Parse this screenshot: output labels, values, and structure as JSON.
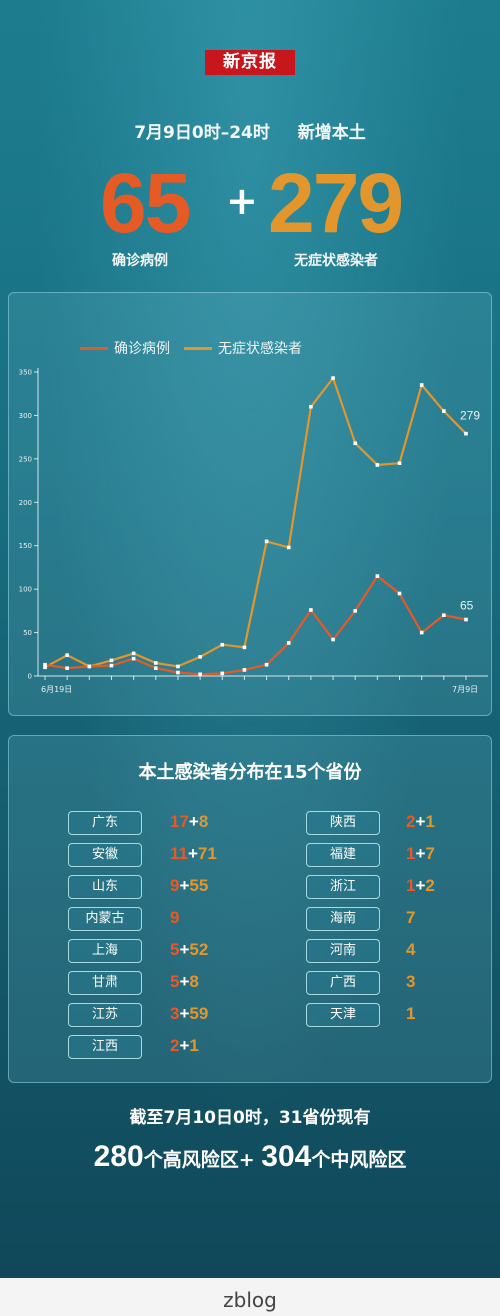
{
  "brand": "新京报",
  "headline": {
    "date_range": "7月9日0时–24时",
    "label": "新增本土"
  },
  "totals": {
    "confirmed": "65",
    "plus": "+",
    "asymptomatic": "279",
    "confirmed_label": "确诊病例",
    "asymptomatic_label": "无症状感染者"
  },
  "colors": {
    "confirmed": "#e65a26",
    "asymptomatic": "#e2962c"
  },
  "chart_data": {
    "type": "line",
    "x_start_label": "6月19日",
    "x_end_label": "7月9日",
    "ylim": [
      0,
      350
    ],
    "yticks": [
      0,
      50,
      100,
      150,
      200,
      250,
      300,
      350
    ],
    "grid": false,
    "legend_position": "top-left",
    "series": [
      {
        "name": "确诊病例",
        "color": "#e65a26",
        "end_label": "65",
        "values": [
          13,
          9,
          11,
          12,
          20,
          9,
          4,
          2,
          3,
          7,
          13,
          38,
          76,
          42,
          75,
          115,
          95,
          50,
          70,
          65
        ]
      },
      {
        "name": "无症状感染者",
        "color": "#e2962c",
        "end_label": "279",
        "values": [
          10,
          24,
          11,
          18,
          26,
          15,
          11,
          22,
          36,
          33,
          155,
          148,
          310,
          343,
          268,
          243,
          245,
          335,
          305,
          279
        ]
      }
    ]
  },
  "distribution": {
    "title": "本土感染者分布在15个省份",
    "left": [
      {
        "name": "广东",
        "confirmed": "17",
        "plus": "+",
        "asym": "8"
      },
      {
        "name": "安徽",
        "confirmed": "11",
        "plus": "+",
        "asym": "71"
      },
      {
        "name": "山东",
        "confirmed": "9",
        "plus": "+",
        "asym": "55"
      },
      {
        "name": "内蒙古",
        "confirmed": "9",
        "plus": "",
        "asym": ""
      },
      {
        "name": "上海",
        "confirmed": "5",
        "plus": "+",
        "asym": "52"
      },
      {
        "name": "甘肃",
        "confirmed": "5",
        "plus": "+",
        "asym": "8"
      },
      {
        "name": "江苏",
        "confirmed": "3",
        "plus": "+",
        "asym": "59"
      },
      {
        "name": "江西",
        "confirmed": "2",
        "plus": "+",
        "asym": "1"
      }
    ],
    "right": [
      {
        "name": "陕西",
        "confirmed": "2",
        "plus": "+",
        "asym": "1"
      },
      {
        "name": "福建",
        "confirmed": "1",
        "plus": "+",
        "asym": "7"
      },
      {
        "name": "浙江",
        "confirmed": "1",
        "plus": "+",
        "asym": "2"
      },
      {
        "name": "海南",
        "confirmed": "",
        "plus": "",
        "asym": "7"
      },
      {
        "name": "河南",
        "confirmed": "",
        "plus": "",
        "asym": "4"
      },
      {
        "name": "广西",
        "confirmed": "",
        "plus": "",
        "asym": "3"
      },
      {
        "name": "天津",
        "confirmed": "",
        "plus": "",
        "asym": "1"
      }
    ]
  },
  "footer": {
    "line1": "截至7月10日0时，31省份现有",
    "high_num": "280",
    "high_text": "个高风险区+ ",
    "mid_num": "304",
    "mid_text": "个中风险区"
  },
  "watermark": "zblog"
}
